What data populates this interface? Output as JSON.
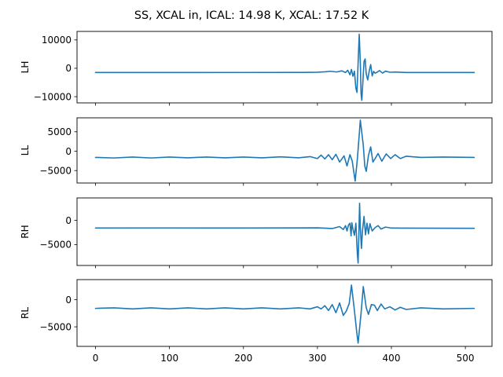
{
  "chart_data": {
    "type": "line",
    "title": "SS, XCAL in, ICAL: 14.98 K, XCAL: 17.52 K",
    "line_color": "#1f77b4",
    "sharex": true,
    "xlim": [
      -25,
      536
    ],
    "xticks": [
      0,
      100,
      200,
      300,
      400,
      500
    ],
    "xtick_labels": [
      "0",
      "100",
      "200",
      "300",
      "400",
      "500"
    ],
    "grid": false,
    "legend": "none",
    "panels": [
      {
        "ylabel": "LH",
        "ylim": [
          -12200,
          13000
        ],
        "yticks": [
          -10000,
          0,
          10000
        ],
        "ytick_labels": [
          "−10000",
          "0",
          "10000"
        ],
        "series": [
          {
            "baseline": -1500,
            "points": [
              [
                0,
                -1500
              ],
              [
                100,
                -1480
              ],
              [
                200,
                -1470
              ],
              [
                280,
                -1460
              ],
              [
                300,
                -1380
              ],
              [
                310,
                -1250
              ],
              [
                318,
                -1050
              ],
              [
                326,
                -1300
              ],
              [
                333,
                -900
              ],
              [
                338,
                -1500
              ],
              [
                341,
                -700
              ],
              [
                344,
                -2300
              ],
              [
                346,
                -400
              ],
              [
                348,
                -2800
              ],
              [
                350,
                -1000
              ],
              [
                352,
                -7000
              ],
              [
                353.5,
                -8500
              ],
              [
                355,
                2000
              ],
              [
                356.5,
                12000
              ],
              [
                358,
                2000
              ],
              [
                359,
                -9000
              ],
              [
                360,
                -11300
              ],
              [
                361.5,
                -4500
              ],
              [
                363,
                2400
              ],
              [
                364.5,
                3300
              ],
              [
                366,
                -2000
              ],
              [
                368,
                -4100
              ],
              [
                370,
                -1000
              ],
              [
                372,
                1300
              ],
              [
                374,
                -2700
              ],
              [
                376,
                -1100
              ],
              [
                378,
                -1700
              ],
              [
                380,
                -1500
              ],
              [
                384,
                -800
              ],
              [
                388,
                -1700
              ],
              [
                392,
                -1000
              ],
              [
                398,
                -1400
              ],
              [
                405,
                -1300
              ],
              [
                420,
                -1500
              ],
              [
                512,
                -1500
              ]
            ]
          }
        ]
      },
      {
        "ylabel": "LL",
        "ylim": [
          -8200,
          8600
        ],
        "yticks": [
          -5000,
          0,
          5000
        ],
        "ytick_labels": [
          "−5000",
          "0",
          "5000"
        ],
        "series": [
          {
            "baseline": -1600,
            "points": [
              [
                0,
                -1600
              ],
              [
                25,
                -1750
              ],
              [
                50,
                -1500
              ],
              [
                75,
                -1750
              ],
              [
                100,
                -1500
              ],
              [
                125,
                -1700
              ],
              [
                150,
                -1500
              ],
              [
                175,
                -1700
              ],
              [
                200,
                -1500
              ],
              [
                225,
                -1700
              ],
              [
                250,
                -1450
              ],
              [
                275,
                -1700
              ],
              [
                290,
                -1400
              ],
              [
                300,
                -1900
              ],
              [
                305,
                -1000
              ],
              [
                310,
                -2000
              ],
              [
                315,
                -900
              ],
              [
                320,
                -2200
              ],
              [
                325,
                -800
              ],
              [
                330,
                -2800
              ],
              [
                336,
                -1200
              ],
              [
                340,
                -3800
              ],
              [
                344,
                -900
              ],
              [
                347,
                -2500
              ],
              [
                351,
                -7700
              ],
              [
                354,
                -2000
              ],
              [
                358,
                8000
              ],
              [
                362,
                1500
              ],
              [
                364,
                -3800
              ],
              [
                366,
                -5200
              ],
              [
                369,
                -1100
              ],
              [
                372,
                1100
              ],
              [
                375,
                -2800
              ],
              [
                378,
                -1900
              ],
              [
                382,
                -600
              ],
              [
                387,
                -2600
              ],
              [
                393,
                -700
              ],
              [
                399,
                -1900
              ],
              [
                405,
                -900
              ],
              [
                412,
                -1900
              ],
              [
                420,
                -1300
              ],
              [
                440,
                -1600
              ],
              [
                470,
                -1500
              ],
              [
                512,
                -1600
              ]
            ]
          }
        ]
      },
      {
        "ylabel": "RH",
        "ylim": [
          -9300,
          4600
        ],
        "yticks": [
          -5000,
          0
        ],
        "ytick_labels": [
          "−5000",
          "0"
        ],
        "series": [
          {
            "baseline": -1600,
            "points": [
              [
                0,
                -1600
              ],
              [
                100,
                -1580
              ],
              [
                200,
                -1590
              ],
              [
                300,
                -1560
              ],
              [
                320,
                -1700
              ],
              [
                330,
                -1300
              ],
              [
                335,
                -1900
              ],
              [
                338,
                -1100
              ],
              [
                340,
                -2200
              ],
              [
                342,
                -1000
              ],
              [
                344,
                -600
              ],
              [
                345.5,
                -3200
              ],
              [
                346.5,
                -500
              ],
              [
                348,
                -1800
              ],
              [
                350,
                -3100
              ],
              [
                352,
                -600
              ],
              [
                354,
                -7000
              ],
              [
                355,
                -8800
              ],
              [
                356,
                -3000
              ],
              [
                357,
                3500
              ],
              [
                358,
                -1500
              ],
              [
                359.5,
                -5800
              ],
              [
                361,
                -2000
              ],
              [
                363,
                800
              ],
              [
                365,
                -3000
              ],
              [
                367,
                -600
              ],
              [
                369,
                -2800
              ],
              [
                371,
                -700
              ],
              [
                374,
                -2200
              ],
              [
                378,
                -1500
              ],
              [
                382,
                -1100
              ],
              [
                386,
                -1800
              ],
              [
                392,
                -1400
              ],
              [
                400,
                -1600
              ],
              [
                512,
                -1650
              ]
            ]
          }
        ]
      },
      {
        "ylabel": "RL",
        "ylim": [
          -8600,
          3700
        ],
        "yticks": [
          -5000,
          0
        ],
        "ytick_labels": [
          "−5000",
          "0"
        ],
        "series": [
          {
            "baseline": -1600,
            "points": [
              [
                0,
                -1600
              ],
              [
                25,
                -1500
              ],
              [
                50,
                -1700
              ],
              [
                75,
                -1500
              ],
              [
                100,
                -1700
              ],
              [
                125,
                -1500
              ],
              [
                150,
                -1700
              ],
              [
                175,
                -1500
              ],
              [
                200,
                -1700
              ],
              [
                225,
                -1500
              ],
              [
                250,
                -1700
              ],
              [
                275,
                -1500
              ],
              [
                290,
                -1700
              ],
              [
                300,
                -1300
              ],
              [
                305,
                -1700
              ],
              [
                310,
                -1100
              ],
              [
                315,
                -2000
              ],
              [
                320,
                -900
              ],
              [
                325,
                -2400
              ],
              [
                330,
                -600
              ],
              [
                335,
                -2900
              ],
              [
                339,
                -2100
              ],
              [
                343,
                -700
              ],
              [
                346,
                2700
              ],
              [
                350,
                -2000
              ],
              [
                353,
                -5800
              ],
              [
                355,
                -8000
              ],
              [
                359,
                -2500
              ],
              [
                362,
                2400
              ],
              [
                366,
                -1500
              ],
              [
                369,
                -2700
              ],
              [
                373,
                -900
              ],
              [
                377,
                -1000
              ],
              [
                381,
                -2000
              ],
              [
                386,
                -800
              ],
              [
                391,
                -1700
              ],
              [
                398,
                -1300
              ],
              [
                405,
                -1900
              ],
              [
                412,
                -1400
              ],
              [
                420,
                -1800
              ],
              [
                440,
                -1500
              ],
              [
                470,
                -1700
              ],
              [
                512,
                -1600
              ]
            ]
          }
        ]
      }
    ]
  }
}
